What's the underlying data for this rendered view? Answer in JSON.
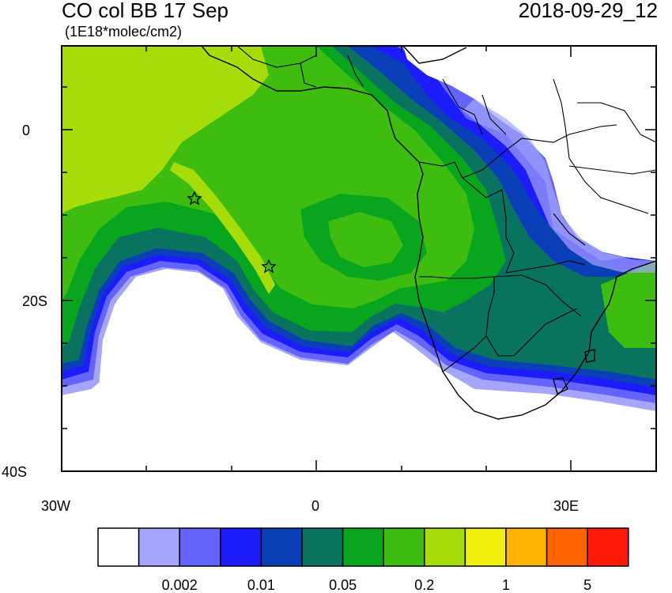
{
  "header": {
    "title": "CO col BB 17 Sep",
    "units": "(1E18*molec/cm2)",
    "datetime": "2018-09-29_12"
  },
  "map": {
    "region": "South Atlantic / Southern Africa",
    "lon_range": [
      -30,
      40
    ],
    "lat_range": [
      -40,
      10
    ],
    "x_tick_labels": [
      "30W",
      "0",
      "30E"
    ],
    "y_tick_labels": [
      "0",
      "20S",
      "40S"
    ],
    "markers": [
      {
        "name": "star",
        "lon": -14.5,
        "lat": -8
      },
      {
        "name": "star",
        "lon": -5.7,
        "lat": -16
      }
    ]
  },
  "colorbar": {
    "colors": [
      "#ffffff",
      "#a5a5fb",
      "#6464fa",
      "#1c1cfc",
      "#0b3fb8",
      "#0a7360",
      "#0aa51e",
      "#3ebd10",
      "#a5dc0a",
      "#f0f00c",
      "#ffb400",
      "#ff6400",
      "#ff1a0a"
    ],
    "labels": [
      "0.002",
      "0.01",
      "0.05",
      "0.2",
      "1",
      "5"
    ]
  }
}
